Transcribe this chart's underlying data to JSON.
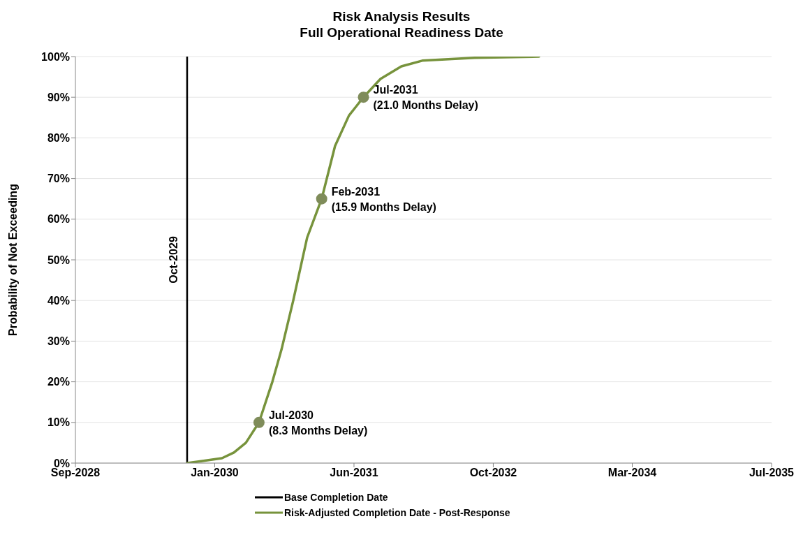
{
  "chart_data": {
    "type": "line",
    "title": "Risk Analysis Results",
    "subtitle": "Full Operational Readiness Date",
    "ylabel": "Probability of Not Exceeding",
    "series": [
      {
        "name": "Base Completion Date",
        "color": "#000000",
        "marker": "none",
        "x": [
          "2029-10-16",
          "2029-10-16"
        ],
        "values": [
          0,
          100
        ]
      },
      {
        "name": "Risk-Adjusted Completion Date - Post-Response",
        "color": "#77933c",
        "marker": "none",
        "x": [
          "2029-10-16",
          "2029-12-10",
          "2030-02-18",
          "2030-04-02",
          "2030-05-15",
          "2030-07-01",
          "2030-08-18",
          "2030-09-20",
          "2030-11-01",
          "2030-12-21",
          "2031-02-11",
          "2031-03-31",
          "2031-05-20",
          "2031-07-11",
          "2031-09-10",
          "2031-11-24",
          "2032-02-07",
          "2032-08-13",
          "2033-04-01"
        ],
        "values": [
          0,
          0.5,
          1.2,
          2.6,
          5,
          10,
          20,
          28,
          40,
          55.5,
          65,
          78,
          85.5,
          90,
          94.5,
          97.6,
          99,
          99.7,
          100
        ]
      },
      {
        "type": "scatter",
        "color": "#7f8c5a",
        "marker": "circle",
        "x": [
          "2030-07-01",
          "2031-02-11",
          "2031-07-11"
        ],
        "values": [
          10,
          65,
          90
        ]
      }
    ],
    "annotations": [
      {
        "text": "Oct-2029",
        "x": "2029-10-16",
        "y": 50
      },
      {
        "text": "Jul-2030\n(8.3 Months Delay)",
        "x": "2030-07-01",
        "y": 10
      },
      {
        "text": "Feb-2031\n(15.9 Months Delay)",
        "x": "2031-02-11",
        "y": 65
      },
      {
        "text": "Jul-2031\n(21.0 Months Delay)",
        "x": "2031-07-11",
        "y": 90
      }
    ],
    "xlim": [
      "2028-09-10",
      "2035-07-15"
    ],
    "xticks": [
      {
        "value": "2028-09-10",
        "label": "Sep-2028"
      },
      {
        "value": "2030-01-23",
        "label": "Jan-2030"
      },
      {
        "value": "2031-06-07",
        "label": "Jun-2031"
      },
      {
        "value": "2032-10-19",
        "label": "Oct-2032"
      },
      {
        "value": "2034-03-02",
        "label": "Mar-2034"
      },
      {
        "value": "2035-07-15",
        "label": "Jul-2035"
      }
    ],
    "ylim": [
      0,
      100
    ],
    "yticks": [
      {
        "value": 0,
        "label": "0%"
      },
      {
        "value": 10,
        "label": "10%"
      },
      {
        "value": 20,
        "label": "20%"
      },
      {
        "value": 30,
        "label": "30%"
      },
      {
        "value": 40,
        "label": "40%"
      },
      {
        "value": 50,
        "label": "50%"
      },
      {
        "value": 60,
        "label": "60%"
      },
      {
        "value": 70,
        "label": "70%"
      },
      {
        "value": 80,
        "label": "80%"
      },
      {
        "value": 90,
        "label": "90%"
      },
      {
        "value": 100,
        "label": "100%"
      }
    ],
    "grid": "y",
    "legend": "bottom",
    "line_style": "solid"
  }
}
